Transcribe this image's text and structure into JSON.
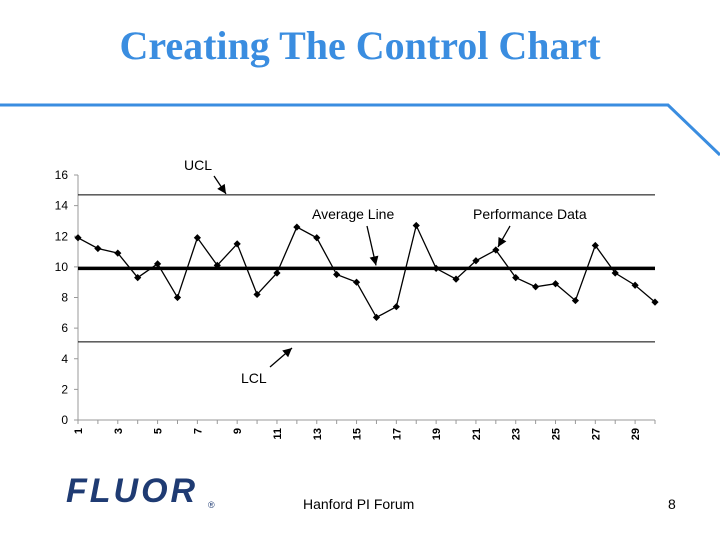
{
  "slide": {
    "title": "Creating The Control Chart",
    "footer": "Hanford PI Forum",
    "page_number": "8",
    "logo_text": "FLUOR",
    "logo_mark": "®",
    "accent_color": "#3a8de0",
    "logo_color": "#1f3b73"
  },
  "chart_data": {
    "type": "line",
    "title": "",
    "xlabel": "",
    "ylabel": "",
    "x": [
      1,
      2,
      3,
      4,
      5,
      6,
      7,
      8,
      9,
      10,
      11,
      12,
      13,
      14,
      15,
      16,
      17,
      18,
      19,
      20,
      21,
      22,
      23,
      24,
      25,
      26,
      27,
      28,
      29,
      30
    ],
    "x_tick_labels": [
      "1",
      "3",
      "5",
      "7",
      "9",
      "11",
      "13",
      "15",
      "17",
      "19",
      "21",
      "23",
      "25",
      "27",
      "29"
    ],
    "y_tick_labels": [
      "0",
      "2",
      "4",
      "6",
      "8",
      "10",
      "12",
      "14",
      "16"
    ],
    "ylim": [
      0,
      16
    ],
    "grid": false,
    "series": [
      {
        "name": "Performance Data",
        "values": [
          11.9,
          11.2,
          10.9,
          9.3,
          10.2,
          8.0,
          11.9,
          10.1,
          11.5,
          8.2,
          9.6,
          12.6,
          11.9,
          9.5,
          9.0,
          6.7,
          7.4,
          12.7,
          9.9,
          9.2,
          10.4,
          11.1,
          9.3,
          8.7,
          8.9,
          7.8,
          11.4,
          9.6,
          8.8,
          7.7
        ],
        "color": "#000000",
        "marker": "diamond"
      }
    ],
    "reference_lines": [
      {
        "name": "UCL",
        "y": 14.7
      },
      {
        "name": "Average Line",
        "y": 9.9
      },
      {
        "name": "LCL",
        "y": 5.1
      }
    ],
    "annotations": [
      {
        "text": "UCL"
      },
      {
        "text": "Average Line"
      },
      {
        "text": "Performance Data"
      },
      {
        "text": "LCL"
      }
    ]
  }
}
